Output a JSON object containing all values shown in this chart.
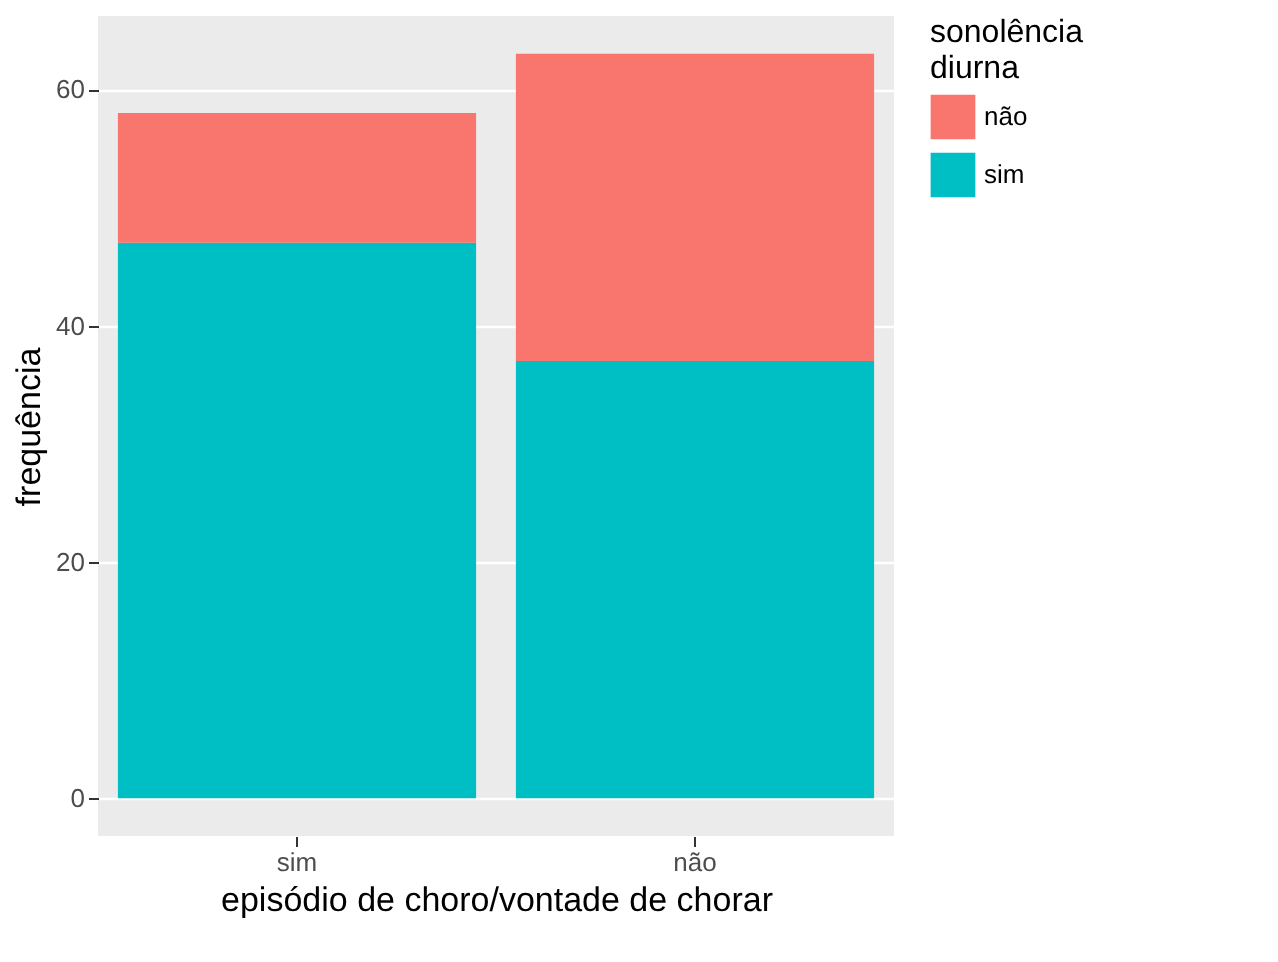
{
  "chart_data": {
    "type": "bar",
    "xlabel": "episódio de choro/vontade de chorar",
    "ylabel": "frequência",
    "legend_title": "sonolência diurna",
    "categories": [
      "sim",
      "não"
    ],
    "stacked": true,
    "series": [
      {
        "name": "sim",
        "color": "#00bfc4",
        "values": [
          47,
          37
        ]
      },
      {
        "name": "não",
        "color": "#f8766d",
        "values": [
          11,
          26
        ]
      }
    ],
    "ylim": [
      -3.2,
      66.2
    ],
    "yticks": [
      0,
      20,
      40,
      60
    ],
    "grid": true,
    "legend": "right"
  }
}
